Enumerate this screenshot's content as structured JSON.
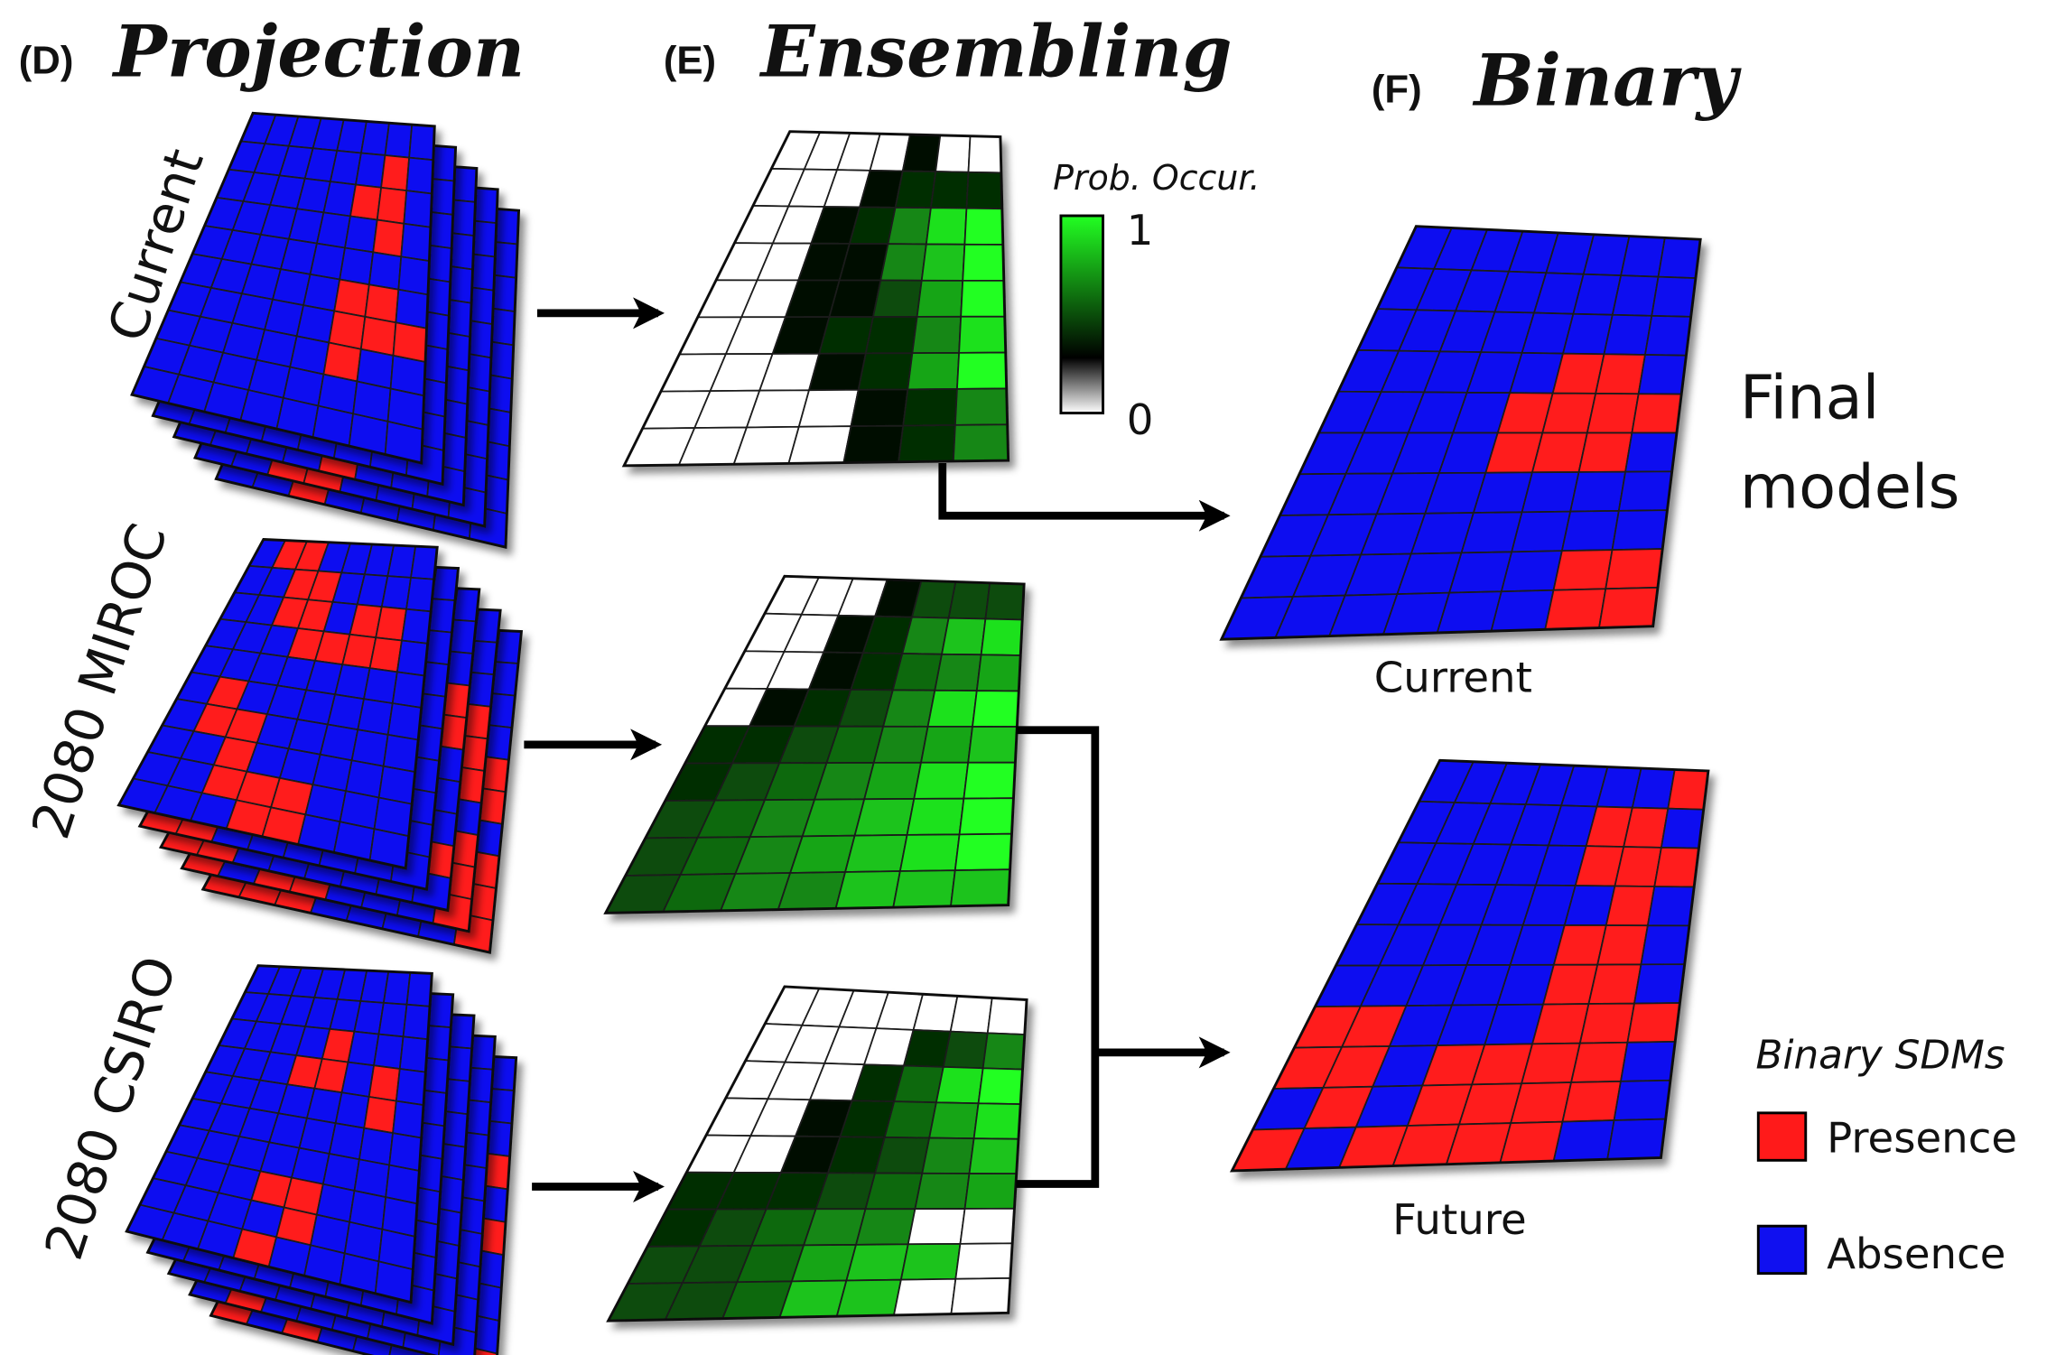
{
  "colors": {
    "presence": "#ff1a1a",
    "absence": "#1010f0",
    "prob_high": "#22ff22",
    "prob_low": "#000000",
    "prob_zero": "#ffffff"
  },
  "panels": {
    "projection": {
      "letter": "(D)",
      "title": "Projection"
    },
    "ensembling": {
      "letter": "(E)",
      "title": "Ensembling"
    },
    "binary": {
      "letter": "(F)",
      "title": "Binary"
    }
  },
  "scenarios": [
    "Current",
    "2080 MIROC",
    "2080 CSIRO"
  ],
  "colorbar": {
    "title": "Prob. Occur.",
    "max_label": "1",
    "min_label": "0"
  },
  "final_models": {
    "line1": "Final",
    "line2": "models"
  },
  "binary_maps": {
    "current_label": "Current",
    "future_label": "Future"
  },
  "legend": {
    "title": "Binary SDMs",
    "presence_label": "Presence",
    "absence_label": "Absence"
  },
  "icons": [
    "arrow-right-icon"
  ]
}
